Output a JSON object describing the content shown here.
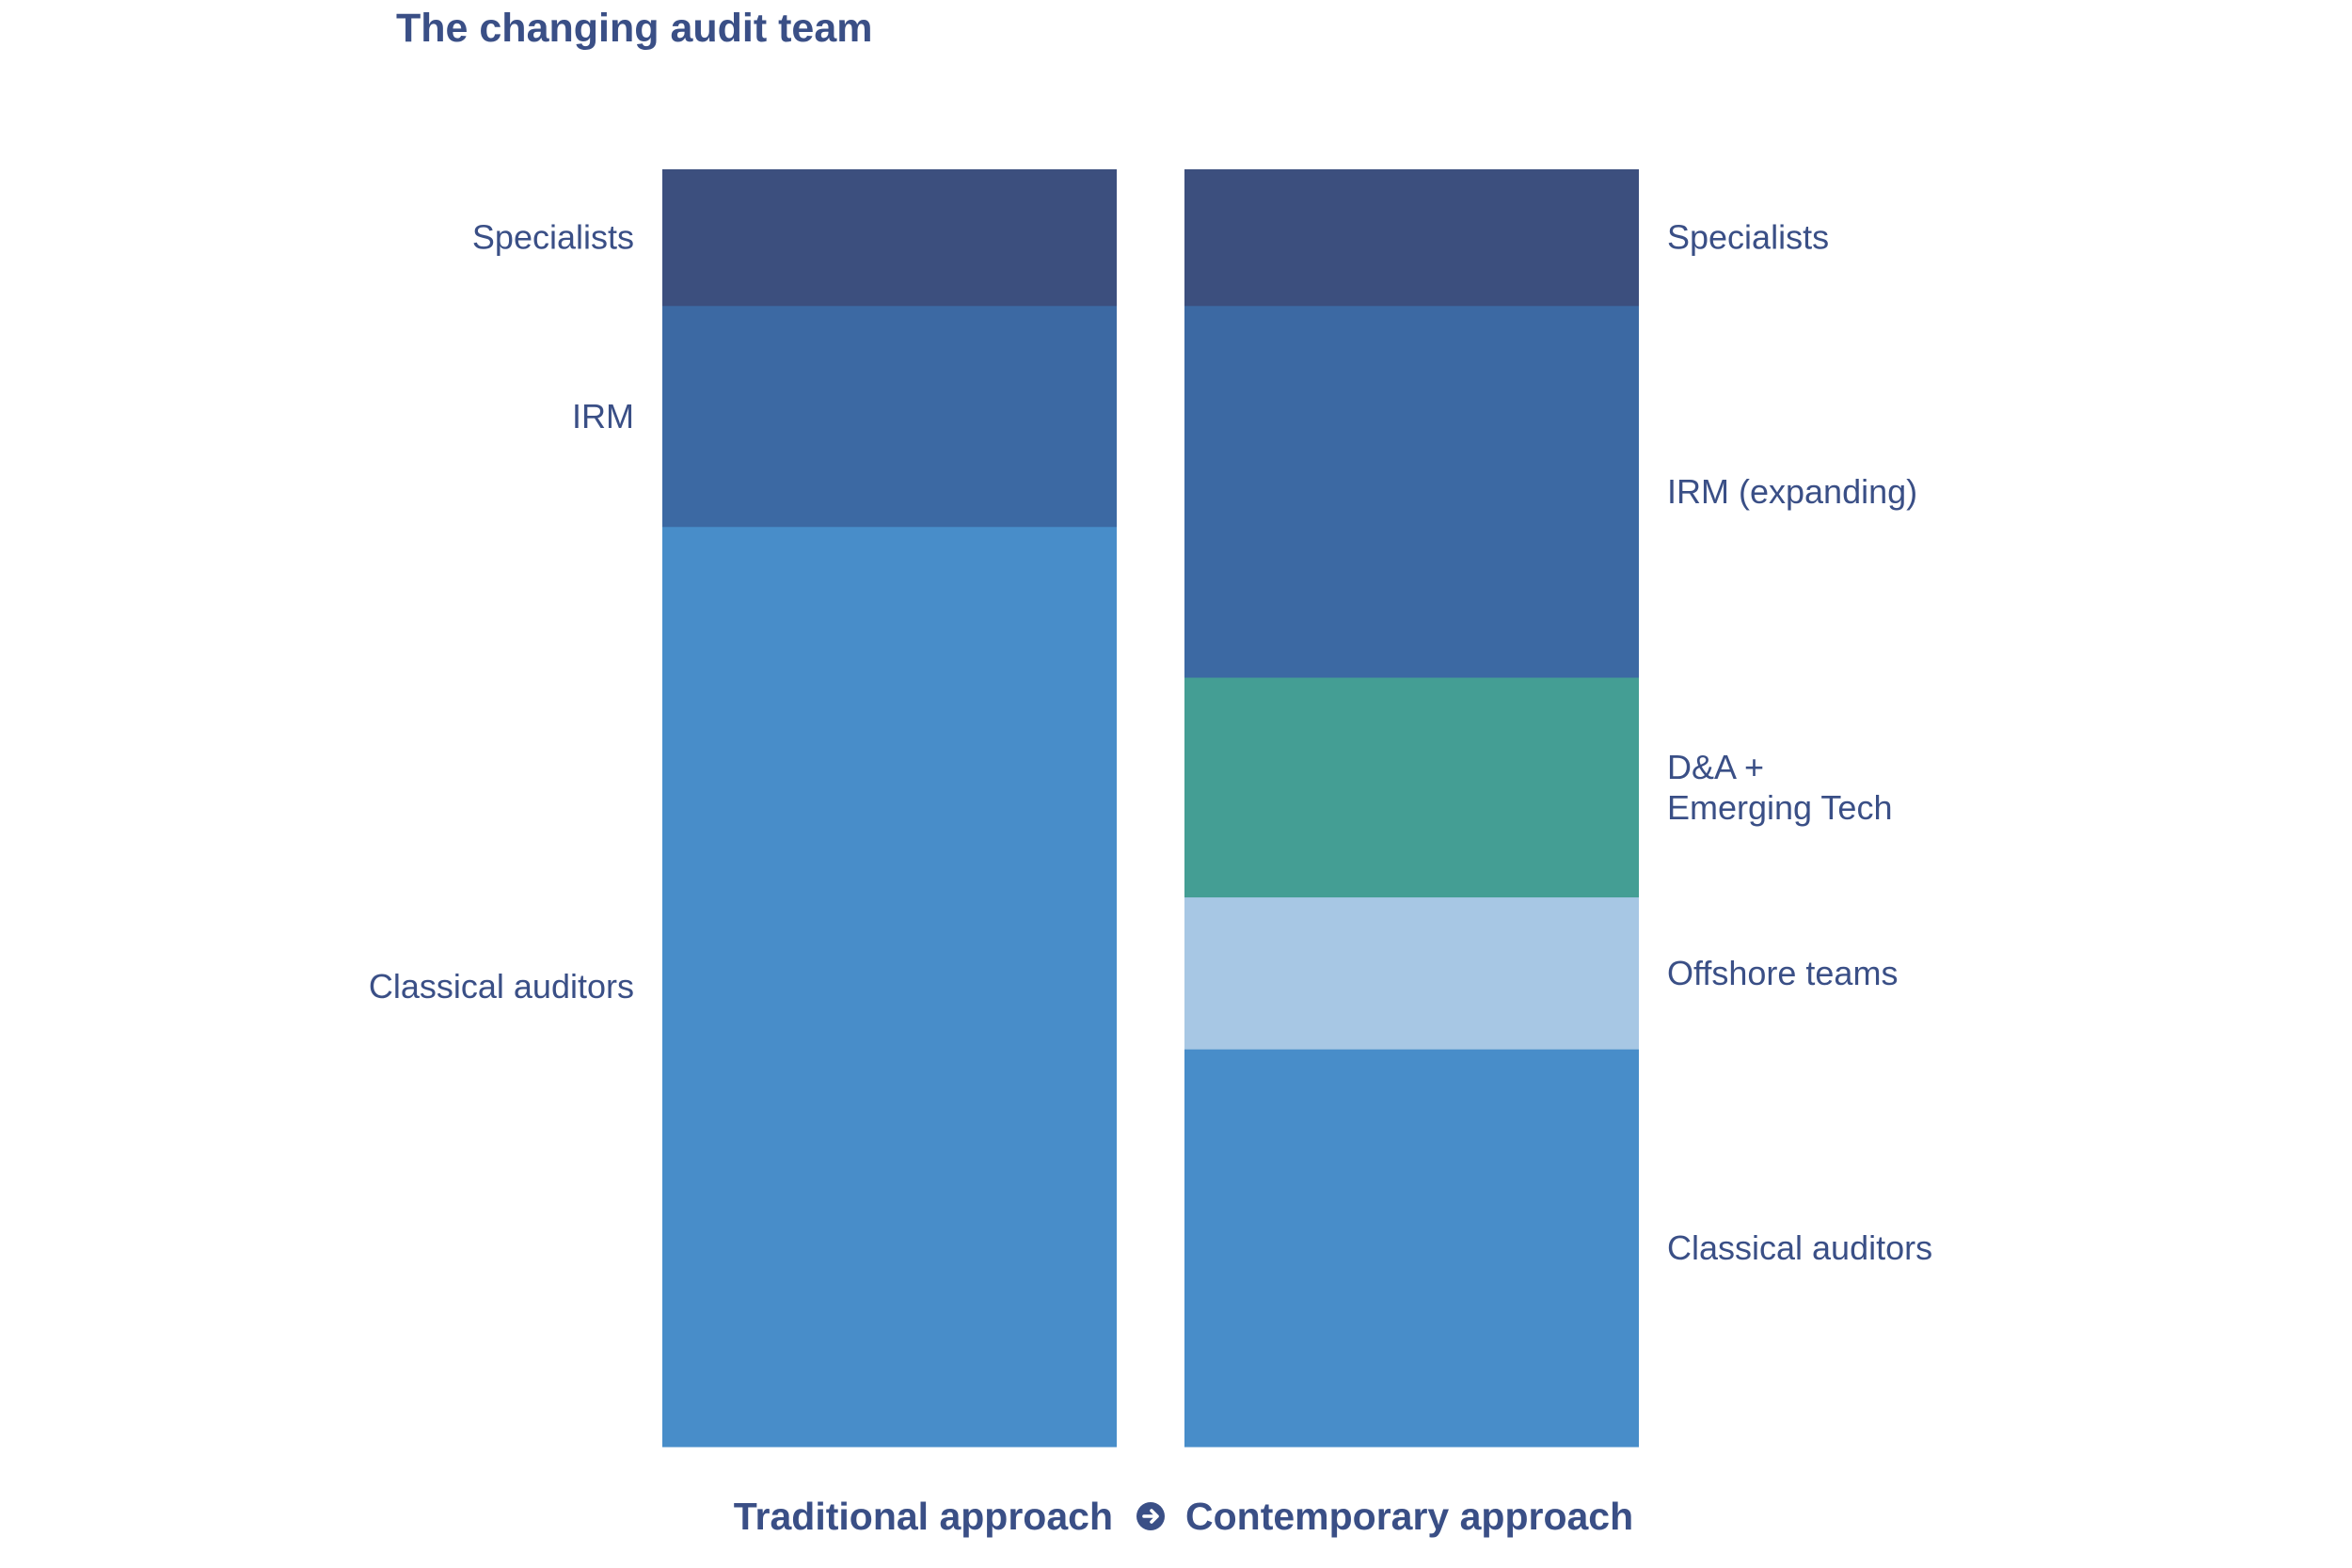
{
  "chart_data": {
    "type": "bar",
    "subtype": "stacked-100-percent",
    "title": "The changing audit team",
    "xlabel": "",
    "ylabel": "",
    "categories": [
      "Traditional approach",
      "Contemporary approach"
    ],
    "category_connector_icon": "arrow-right-circle-icon",
    "value_unit": "percent of audit team",
    "ylim": [
      0,
      100
    ],
    "grid": false,
    "legend": "none (segments labeled directly beside bars)",
    "bars": [
      {
        "category": "Traditional approach",
        "label_side": "left",
        "segments": [
          {
            "name": "Specialists",
            "label_lines": [
              "Specialists"
            ],
            "value": 10.7,
            "color": "#3c4f7e"
          },
          {
            "name": "IRM",
            "label_lines": [
              "IRM"
            ],
            "value": 17.3,
            "color": "#3c69a3"
          },
          {
            "name": "Classical auditors",
            "label_lines": [
              "Classical auditors"
            ],
            "value": 72.0,
            "color": "#488dc9"
          }
        ]
      },
      {
        "category": "Contemporary approach",
        "label_side": "right",
        "segments": [
          {
            "name": "Specialists",
            "label_lines": [
              "Specialists"
            ],
            "value": 10.7,
            "color": "#3c4f7e"
          },
          {
            "name": "IRM (expanding)",
            "label_lines": [
              "IRM (expanding)"
            ],
            "value": 29.1,
            "color": "#3c69a3"
          },
          {
            "name": "D&A + Emerging Tech",
            "label_lines": [
              "D&A +",
              "Emerging Tech"
            ],
            "value": 17.2,
            "color": "#449e94"
          },
          {
            "name": "Offshore teams",
            "label_lines": [
              "Offshore teams"
            ],
            "value": 11.9,
            "color": "#a7c7e4"
          },
          {
            "name": "Classical auditors",
            "label_lines": [
              "Classical auditors"
            ],
            "value": 31.1,
            "color": "#488dc9"
          }
        ]
      }
    ]
  },
  "colors": {
    "text": "#3a4f86",
    "icon_fill": "#3a4f86",
    "icon_arrow": "#ffffff",
    "background": "#ffffff"
  }
}
